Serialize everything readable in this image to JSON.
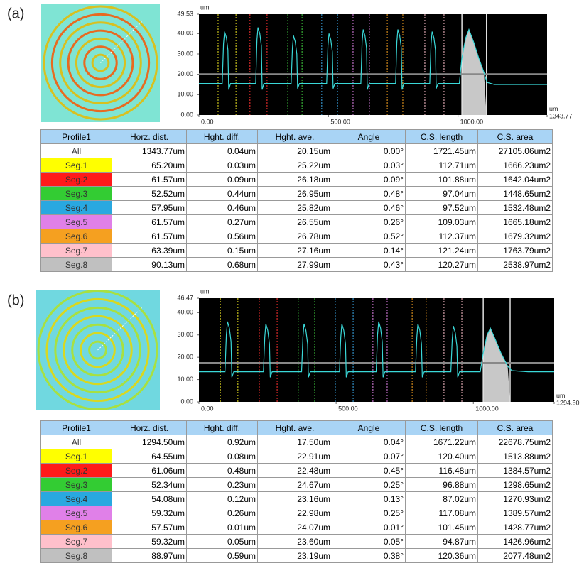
{
  "panels": [
    {
      "label": "(a)",
      "table": {
        "columns": [
          "Profile1",
          "Horz. dist.",
          "Hght. diff.",
          "Hght. ave.",
          "Angle",
          "C.S. length",
          "C.S. area"
        ],
        "row_colors": [
          "#ffffff",
          "#ffff00",
          "#ff1a1a",
          "#33cc33",
          "#29a8e0",
          "#e080e8",
          "#f5a020",
          "#ffc0cb",
          "#c0c0c0"
        ],
        "rows": [
          [
            "All",
            "1343.77um",
            "0.04um",
            "20.15um",
            "0.00°",
            "1721.45um",
            "27105.06um2"
          ],
          [
            "Seg.1",
            "65.20um",
            "0.03um",
            "25.22um",
            "0.03°",
            "112.71um",
            "1666.23um2"
          ],
          [
            "Seg.2",
            "61.57um",
            "0.09um",
            "26.18um",
            "0.09°",
            "101.88um",
            "1642.04um2"
          ],
          [
            "Seg.3",
            "52.52um",
            "0.44um",
            "26.95um",
            "0.48°",
            "97.04um",
            "1448.65um2"
          ],
          [
            "Seg.4",
            "57.95um",
            "0.46um",
            "25.82um",
            "0.46°",
            "97.52um",
            "1532.48um2"
          ],
          [
            "Seg.5",
            "61.57um",
            "0.27um",
            "26.55um",
            "0.26°",
            "109.03um",
            "1665.18um2"
          ],
          [
            "Seg.6",
            "61.57um",
            "0.56um",
            "26.78um",
            "0.52°",
            "112.37um",
            "1679.32um2"
          ],
          [
            "Seg.7",
            "63.39um",
            "0.15um",
            "27.16um",
            "0.14°",
            "121.24um",
            "1763.79um2"
          ],
          [
            "Seg.8",
            "90.13um",
            "0.68um",
            "27.99um",
            "0.43°",
            "120.27um",
            "2538.97um2"
          ]
        ]
      }
    },
    {
      "label": "(b)",
      "table": {
        "columns": [
          "Profile1",
          "Horz. dist.",
          "Hght. diff.",
          "Hght. ave.",
          "Angle",
          "C.S. length",
          "C.S. area"
        ],
        "row_colors": [
          "#ffffff",
          "#ffff00",
          "#ff1a1a",
          "#33cc33",
          "#29a8e0",
          "#e080e8",
          "#f5a020",
          "#ffc0cb",
          "#c0c0c0"
        ],
        "rows": [
          [
            "All",
            "1294.50um",
            "0.92um",
            "17.50um",
            "0.04°",
            "1671.22um",
            "22678.75um2"
          ],
          [
            "Seg.1",
            "64.55um",
            "0.08um",
            "22.91um",
            "0.07°",
            "120.40um",
            "1513.88um2"
          ],
          [
            "Seg.2",
            "61.06um",
            "0.48um",
            "22.48um",
            "0.45°",
            "116.48um",
            "1384.57um2"
          ],
          [
            "Seg.3",
            "52.34um",
            "0.23um",
            "24.67um",
            "0.25°",
            "96.88um",
            "1298.65um2"
          ],
          [
            "Seg.4",
            "54.08um",
            "0.12um",
            "23.16um",
            "0.13°",
            "87.02um",
            "1270.93um2"
          ],
          [
            "Seg.5",
            "59.32um",
            "0.26um",
            "22.98um",
            "0.25°",
            "117.08um",
            "1389.57um2"
          ],
          [
            "Seg.6",
            "57.57um",
            "0.01um",
            "24.07um",
            "0.01°",
            "101.45um",
            "1428.77um2"
          ],
          [
            "Seg.7",
            "59.32um",
            "0.05um",
            "23.60um",
            "0.05°",
            "94.87um",
            "1426.96um2"
          ],
          [
            "Seg.8",
            "88.97um",
            "0.59um",
            "23.19um",
            "0.38°",
            "120.36um",
            "2077.48um2"
          ]
        ]
      }
    }
  ],
  "chart_data": [
    {
      "type": "line",
      "x_unit": "um",
      "y_unit": "um",
      "xlim": [
        0,
        1343.77
      ],
      "ylim": [
        0,
        49.53
      ],
      "xticks": [
        {
          "value": 0,
          "label": "0.00"
        },
        {
          "value": 500,
          "label": "500.00"
        },
        {
          "value": 1000,
          "label": "1000.00"
        },
        1343.77
      ],
      "yticks": [
        {
          "value": 0,
          "label": "0.00"
        },
        {
          "value": 10,
          "label": "10.00"
        },
        {
          "value": 20,
          "label": "20.00"
        },
        {
          "value": 30,
          "label": "30.00"
        },
        {
          "value": 40,
          "label": "40.00"
        },
        49.53
      ],
      "reference_line": 20.15,
      "segments": [
        {
          "color": "#e8e020",
          "x": [
            74,
            143
          ]
        },
        {
          "color": "#ff3030",
          "x": [
            197,
            263
          ]
        },
        {
          "color": "#40d040",
          "x": [
            343,
            398
          ]
        },
        {
          "color": "#3aa8e8",
          "x": [
            474,
            535
          ]
        },
        {
          "color": "#e080e8",
          "x": [
            595,
            658
          ]
        },
        {
          "color": "#f5a020",
          "x": [
            727,
            787
          ]
        },
        {
          "color": "#ffc0cb",
          "x": [
            872,
            946
          ]
        },
        {
          "color": "#e0e0e0",
          "x": [
            1015,
            1110
          ],
          "fill": "#c8c8c8"
        }
      ],
      "x": [
        0,
        60,
        90,
        95,
        99,
        106,
        112,
        115,
        122,
        219,
        224,
        228,
        235,
        241,
        244,
        251,
        356,
        361,
        365,
        372,
        378,
        381,
        388,
        493,
        498,
        502,
        509,
        515,
        518,
        525,
        625,
        630,
        634,
        641,
        647,
        650,
        657,
        759,
        764,
        768,
        775,
        781,
        784,
        791,
        891,
        896,
        900,
        907,
        913,
        916,
        923,
        1005,
        1015,
        1030,
        1042,
        1060,
        1080,
        1100,
        1112,
        1140,
        1343.77
      ],
      "series": [
        {
          "color": "#3ad8d8",
          "values": [
            15.5,
            15.5,
            15.5,
            35,
            41,
            38,
            32,
            12.5,
            15.5,
            15.5,
            37,
            43,
            40,
            34,
            12.5,
            15.5,
            15.5,
            33,
            39,
            36,
            30,
            13,
            15.5,
            15.5,
            34,
            40,
            37,
            31,
            13,
            15.5,
            15.5,
            36,
            42,
            39,
            33,
            12.5,
            15.5,
            15.5,
            36,
            42,
            39,
            33,
            12.5,
            15.5,
            15.5,
            35,
            41,
            38,
            32,
            13,
            15.5,
            15.5,
            28,
            38,
            42,
            36,
            28,
            21,
            16,
            15,
            15
          ]
        }
      ]
    },
    {
      "type": "line",
      "x_unit": "um",
      "y_unit": "um",
      "xlim": [
        0,
        1294.5
      ],
      "ylim": [
        0,
        46.47
      ],
      "xticks": [
        {
          "value": 0,
          "label": "0.00"
        },
        {
          "value": 500,
          "label": "500.00"
        },
        {
          "value": 1000,
          "label": "1000.00"
        },
        {
          "value": 1294.5,
          "label": "1294.50"
        }
      ],
      "yticks": [
        {
          "value": 0,
          "label": "0.00"
        },
        {
          "value": 10,
          "label": "10.00"
        },
        {
          "value": 20,
          "label": "20.00"
        },
        {
          "value": 30,
          "label": "30.00"
        },
        {
          "value": 40,
          "label": "40.00"
        },
        46.47
      ],
      "reference_line": 17.5,
      "segments": [
        {
          "color": "#e8e020",
          "x": [
            78,
            142
          ]
        },
        {
          "color": "#ff3030",
          "x": [
            220,
            285
          ]
        },
        {
          "color": "#40d040",
          "x": [
            362,
            422
          ]
        },
        {
          "color": "#3aa8e8",
          "x": [
            497,
            562
          ]
        },
        {
          "color": "#e080e8",
          "x": [
            634,
            686
          ]
        },
        {
          "color": "#f5a020",
          "x": [
            777,
            828
          ]
        },
        {
          "color": "#ffc0cb",
          "x": [
            893,
            958
          ]
        },
        {
          "color": "#e0e0e0",
          "x": [
            1036,
            1134
          ],
          "fill": "#c8c8c8"
        }
      ],
      "x": [
        0,
        60,
        95,
        100,
        104,
        111,
        117,
        120,
        127,
        235,
        240,
        244,
        251,
        257,
        260,
        267,
        374,
        379,
        383,
        390,
        396,
        399,
        406,
        512,
        517,
        521,
        528,
        534,
        537,
        544,
        646,
        651,
        655,
        662,
        668,
        671,
        678,
        789,
        794,
        798,
        805,
        811,
        814,
        821,
        918,
        923,
        927,
        934,
        940,
        943,
        950,
        1025,
        1036,
        1050,
        1062,
        1080,
        1100,
        1125,
        1140,
        1200,
        1294.5
      ],
      "series": [
        {
          "color": "#3ad8d8",
          "values": [
            13.5,
            13.5,
            13.5,
            30,
            36,
            33,
            27,
            11,
            13.5,
            13.5,
            29,
            35,
            32,
            26,
            11,
            13.5,
            13.5,
            29,
            35,
            32,
            26,
            11,
            13.5,
            13.5,
            29,
            35,
            32,
            26,
            11,
            13.5,
            13.5,
            30,
            36,
            33,
            27,
            11,
            13.5,
            13.5,
            29,
            35,
            32,
            26,
            11,
            13.5,
            13.5,
            28,
            34,
            31,
            25,
            11,
            13.5,
            13.5,
            22,
            30,
            33,
            28,
            22,
            16,
            14,
            13.5,
            13.5
          ]
        }
      ]
    }
  ]
}
